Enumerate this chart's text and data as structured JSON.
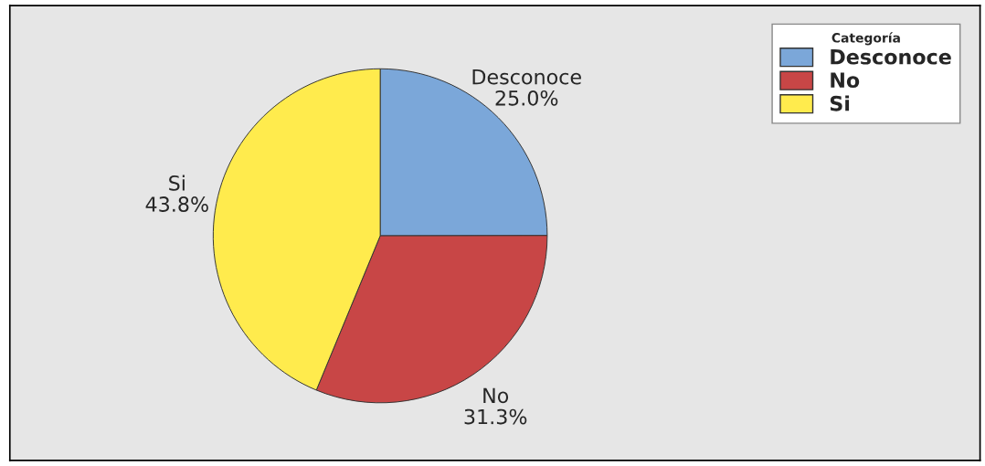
{
  "chart_data": {
    "type": "pie",
    "categories": [
      "Desconoce",
      "No",
      "Si"
    ],
    "values": [
      25.0,
      31.3,
      43.8
    ],
    "value_labels": [
      "25.0%",
      "31.3%",
      "43.8%"
    ],
    "colors": [
      "#7ba7d9",
      "#c84646",
      "#ffeb4d"
    ],
    "legend_title": "Categoría",
    "legend": "top right"
  }
}
